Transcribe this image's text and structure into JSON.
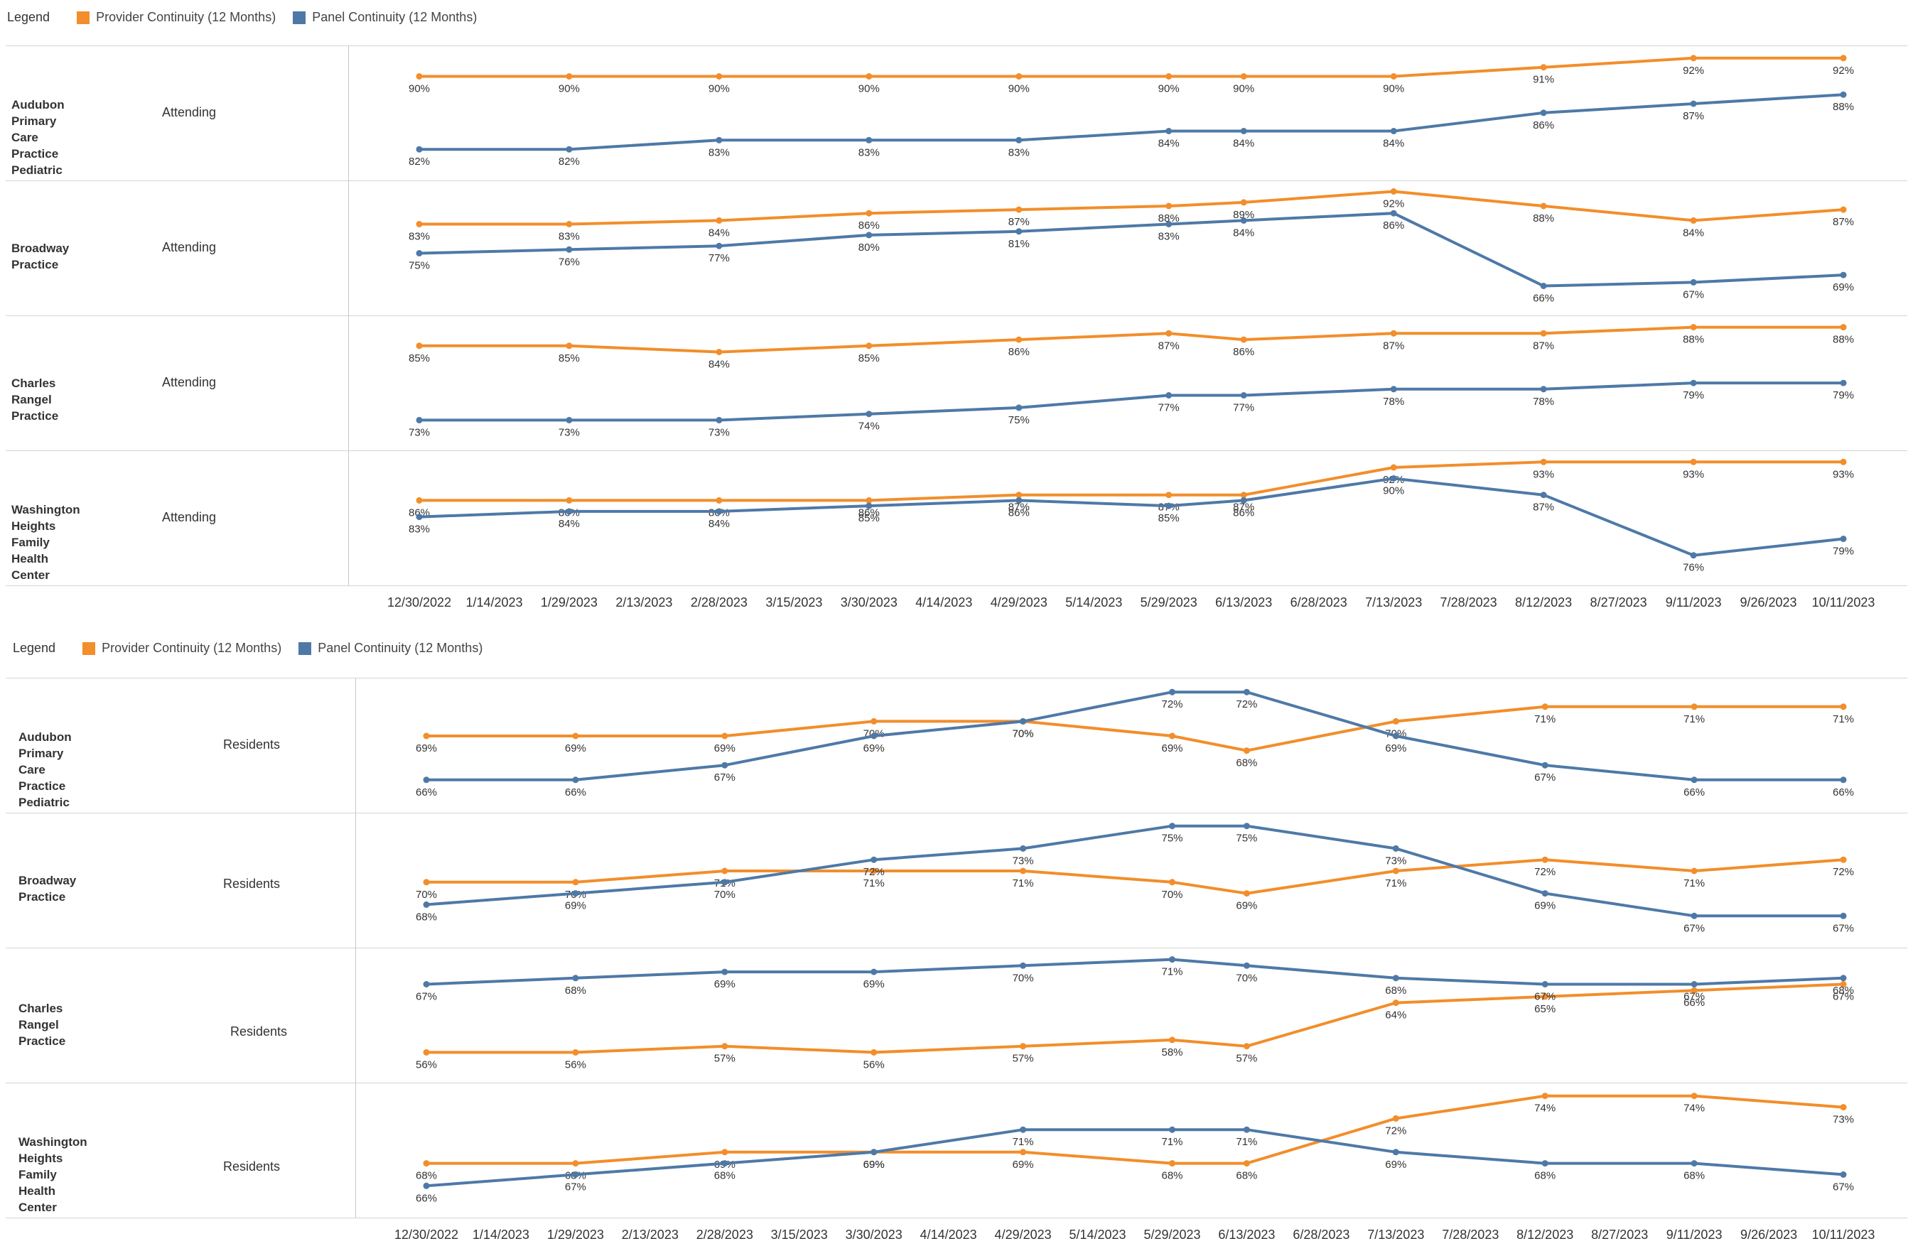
{
  "legend": {
    "title": "Legend",
    "items": [
      {
        "label": "Provider Continuity (12 Months)",
        "color": "#F28E2B"
      },
      {
        "label": "Panel Continuity (12 Months)",
        "color": "#4E79A7"
      }
    ]
  },
  "chart_data": [
    {
      "type": "line",
      "role": "Attending",
      "x": [
        "12/30/2022",
        "1/14/2023",
        "1/29/2023",
        "2/13/2023",
        "2/28/2023",
        "3/15/2023",
        "3/30/2023",
        "4/14/2023",
        "4/29/2023",
        "5/14/2023",
        "5/29/2023",
        "6/13/2023",
        "6/28/2023",
        "7/13/2023",
        "7/28/2023",
        "8/12/2023",
        "8/27/2023",
        "9/11/2023",
        "9/26/2023",
        "10/11/2023"
      ],
      "point_dates": [
        "12/30/2022",
        "1/29/2023",
        "2/28/2023",
        "3/30/2023",
        "4/29/2023",
        "5/29/2023",
        "6/13/2023",
        "7/13/2023",
        "8/12/2023",
        "9/11/2023",
        "10/11/2023"
      ],
      "rows": [
        {
          "practice": "Audubon Primary Care\nPractice Pediatric",
          "role": "Attending",
          "series": [
            {
              "name": "Provider Continuity (12 Months)",
              "values": [
                90,
                90,
                90,
                90,
                90,
                90,
                90,
                90,
                91,
                92,
                92
              ]
            },
            {
              "name": "Panel Continuity (12 Months)",
              "values": [
                82,
                82,
                83,
                83,
                83,
                84,
                84,
                84,
                86,
                87,
                88
              ]
            }
          ]
        },
        {
          "practice": "Broadway Practice",
          "role": "Attending",
          "series": [
            {
              "name": "Provider Continuity (12 Months)",
              "values": [
                83,
                83,
                84,
                86,
                87,
                88,
                89,
                92,
                88,
                84,
                87
              ]
            },
            {
              "name": "Panel Continuity (12 Months)",
              "values": [
                75,
                76,
                77,
                80,
                81,
                83,
                84,
                86,
                66,
                67,
                69
              ]
            }
          ]
        },
        {
          "practice": "Charles Rangel Practice",
          "role": "Attending",
          "series": [
            {
              "name": "Provider Continuity (12 Months)",
              "values": [
                85,
                85,
                84,
                85,
                86,
                87,
                86,
                87,
                87,
                88,
                88
              ]
            },
            {
              "name": "Panel Continuity (12 Months)",
              "values": [
                73,
                73,
                73,
                74,
                75,
                77,
                77,
                78,
                78,
                79,
                79
              ]
            }
          ]
        },
        {
          "practice": "Washington Heights\nFamily Health Center",
          "role": "Attending",
          "series": [
            {
              "name": "Provider Continuity (12 Months)",
              "values": [
                86,
                86,
                86,
                86,
                87,
                87,
                87,
                92,
                93,
                93,
                93
              ]
            },
            {
              "name": "Panel Continuity (12 Months)",
              "values": [
                83,
                84,
                84,
                85,
                86,
                85,
                86,
                90,
                87,
                76,
                79
              ]
            }
          ]
        }
      ]
    },
    {
      "type": "line",
      "role": "Residents",
      "x": [
        "12/30/2022",
        "1/14/2023",
        "1/29/2023",
        "2/13/2023",
        "2/28/2023",
        "3/15/2023",
        "3/30/2023",
        "4/14/2023",
        "4/29/2023",
        "5/14/2023",
        "5/29/2023",
        "6/13/2023",
        "6/28/2023",
        "7/13/2023",
        "7/28/2023",
        "8/12/2023",
        "8/27/2023",
        "9/11/2023",
        "9/26/2023",
        "10/11/2023"
      ],
      "point_dates": [
        "12/30/2022",
        "1/29/2023",
        "2/28/2023",
        "3/30/2023",
        "4/29/2023",
        "5/29/2023",
        "6/13/2023",
        "7/13/2023",
        "8/12/2023",
        "9/11/2023",
        "10/11/2023"
      ],
      "rows": [
        {
          "practice": "Audubon Primary Care\nPractice Pediatric",
          "role": "Residents",
          "series": [
            {
              "name": "Provider Continuity (12 Months)",
              "values": [
                69,
                69,
                69,
                70,
                70,
                69,
                68,
                70,
                71,
                71,
                71
              ]
            },
            {
              "name": "Panel Continuity (12 Months)",
              "values": [
                66,
                66,
                67,
                69,
                70,
                72,
                72,
                69,
                67,
                66,
                66
              ]
            }
          ]
        },
        {
          "practice": "Broadway Practice",
          "role": "Residents",
          "series": [
            {
              "name": "Provider Continuity (12 Months)",
              "values": [
                70,
                70,
                71,
                71,
                71,
                70,
                69,
                71,
                72,
                71,
                72
              ]
            },
            {
              "name": "Panel Continuity (12 Months)",
              "values": [
                68,
                69,
                70,
                72,
                73,
                75,
                75,
                73,
                69,
                67,
                67
              ]
            }
          ]
        },
        {
          "practice": "Charles Rangel Practice",
          "role": "Residents",
          "series": [
            {
              "name": "Provider Continuity (12 Months)",
              "values": [
                56,
                56,
                57,
                56,
                57,
                58,
                57,
                64,
                65,
                66,
                67
              ]
            },
            {
              "name": "Panel Continuity (12 Months)",
              "values": [
                67,
                68,
                69,
                69,
                70,
                71,
                70,
                68,
                67,
                67,
                68
              ]
            }
          ]
        },
        {
          "practice": "Washington Heights\nFamily Health Center",
          "role": "Residents",
          "series": [
            {
              "name": "Provider Continuity (12 Months)",
              "values": [
                68,
                68,
                69,
                69,
                69,
                68,
                68,
                72,
                74,
                74,
                73
              ]
            },
            {
              "name": "Panel Continuity (12 Months)",
              "values": [
                66,
                67,
                68,
                69,
                71,
                71,
                71,
                69,
                68,
                68,
                67
              ]
            }
          ]
        }
      ]
    }
  ]
}
